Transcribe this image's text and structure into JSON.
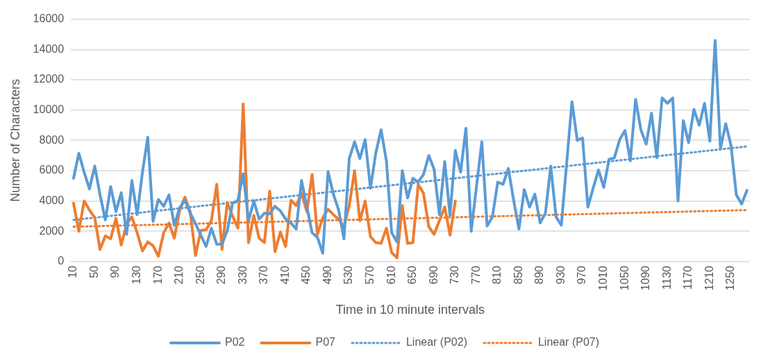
{
  "chart_data": {
    "type": "line",
    "xlabel": "Time in 10 minute intervals",
    "ylabel": "Number of Characters",
    "categories": [
      "10",
      null,
      null,
      null,
      "50",
      null,
      null,
      null,
      "90",
      null,
      null,
      null,
      "130",
      null,
      null,
      null,
      "170",
      null,
      null,
      null,
      "210",
      null,
      null,
      null,
      "250",
      null,
      null,
      null,
      "290",
      null,
      null,
      null,
      "330",
      null,
      null,
      null,
      "370",
      null,
      null,
      null,
      "410",
      null,
      null,
      null,
      "450",
      null,
      null,
      null,
      "490",
      null,
      null,
      null,
      "530",
      null,
      null,
      null,
      "570",
      null,
      null,
      null,
      "610",
      null,
      null,
      null,
      "650",
      null,
      null,
      null,
      "690",
      null,
      null,
      null,
      "730",
      null,
      null,
      null,
      "770",
      null,
      null,
      null,
      "810",
      null,
      null,
      null,
      "850",
      null,
      null,
      null,
      "890",
      null,
      null,
      null,
      "930",
      null,
      null,
      null,
      "970",
      null,
      null,
      null,
      "1010",
      null,
      null,
      null,
      "1050",
      null,
      null,
      null,
      "1090",
      null,
      null,
      null,
      "1130",
      null,
      null,
      null,
      "1170",
      null,
      null,
      null,
      "1210",
      null,
      null,
      null,
      "1250",
      null,
      null,
      null
    ],
    "series": [
      {
        "name": "P02",
        "color": "#5b9bd5",
        "line_style": "solid",
        "values": [
          5500,
          7150,
          5900,
          4800,
          6300,
          4400,
          2750,
          4950,
          3300,
          4550,
          1800,
          5350,
          3100,
          5900,
          8200,
          2650,
          4100,
          3650,
          4400,
          2400,
          3550,
          4050,
          3200,
          2500,
          1750,
          1000,
          2200,
          1150,
          1150,
          2050,
          3850,
          4050,
          5800,
          2700,
          4000,
          2800,
          3200,
          3150,
          3650,
          3350,
          2800,
          2550,
          2150,
          5350,
          3600,
          1900,
          1600,
          550,
          5950,
          4450,
          3400,
          1500,
          6800,
          7900,
          6800,
          8050,
          4850,
          7150,
          8700,
          6650,
          1900,
          1300,
          6000,
          4200,
          5500,
          5250,
          5750,
          7000,
          6100,
          3100,
          6600,
          3050,
          7350,
          5900,
          8800,
          2000,
          5000,
          7900,
          2350,
          2950,
          5250,
          5100,
          6150,
          4050,
          2150,
          4750,
          3600,
          4450,
          2550,
          3200,
          6300,
          2950,
          2400,
          6500,
          10550,
          8000,
          8150,
          3600,
          4850,
          6050,
          4900,
          6750,
          6850,
          8050,
          8650,
          6650,
          10700,
          8700,
          7750,
          9800,
          6850,
          10800,
          10450,
          10800,
          4000,
          9300,
          7850,
          10050,
          9000,
          10450,
          7950,
          14600,
          7450,
          9100,
          7650,
          4400,
          3800,
          4700
        ]
      },
      {
        "name": "P07",
        "color": "#ed7d31",
        "line_style": "solid",
        "values": [
          3850,
          2000,
          4000,
          3400,
          2900,
          800,
          1700,
          1500,
          2850,
          1100,
          2450,
          2950,
          1900,
          700,
          1300,
          1050,
          350,
          1900,
          2550,
          1550,
          3350,
          4250,
          3300,
          400,
          2050,
          2100,
          2700,
          5100,
          800,
          3900,
          3000,
          2200,
          10400,
          1250,
          3050,
          1550,
          1250,
          4650,
          650,
          1950,
          1000,
          4050,
          3700,
          4500,
          3300,
          5750,
          1800,
          2900,
          3450,
          3100,
          2800,
          2300,
          3700,
          6000,
          2700,
          4000,
          1650,
          1250,
          1200,
          2200,
          600,
          250,
          3700,
          1200,
          1250,
          5100,
          4500,
          2300,
          1800,
          2700,
          3600,
          1750,
          4000,
          null,
          null,
          null,
          null,
          null,
          null,
          null,
          null,
          null,
          null,
          null,
          null,
          null,
          null,
          null,
          null,
          null,
          null,
          null,
          null,
          null,
          null,
          null,
          null,
          null,
          null,
          null,
          null,
          null,
          null,
          null,
          null,
          null,
          null,
          null,
          null,
          null,
          null,
          null,
          null,
          null,
          null,
          null,
          null,
          null,
          null,
          null,
          null,
          null,
          null,
          null,
          null,
          null,
          null,
          null
        ]
      },
      {
        "name": "Linear (P02)",
        "color": "#5b9bd5",
        "line_style": "dotted",
        "values": [
          2750,
          null,
          null,
          null,
          null,
          null,
          null,
          null,
          null,
          null,
          null,
          null,
          null,
          null,
          null,
          null,
          null,
          null,
          null,
          null,
          null,
          null,
          null,
          null,
          null,
          null,
          null,
          null,
          null,
          null,
          null,
          null,
          null,
          null,
          null,
          null,
          null,
          null,
          null,
          null,
          null,
          null,
          null,
          null,
          null,
          null,
          null,
          null,
          null,
          null,
          null,
          null,
          null,
          null,
          null,
          null,
          null,
          null,
          null,
          null,
          null,
          null,
          null,
          null,
          null,
          null,
          null,
          null,
          null,
          null,
          null,
          null,
          null,
          null,
          null,
          null,
          null,
          null,
          null,
          null,
          null,
          null,
          null,
          null,
          null,
          null,
          null,
          null,
          null,
          null,
          null,
          null,
          null,
          null,
          null,
          null,
          null,
          null,
          null,
          null,
          null,
          null,
          null,
          null,
          null,
          null,
          null,
          null,
          null,
          null,
          null,
          null,
          null,
          null,
          null,
          null,
          null,
          null,
          null,
          null,
          null,
          null,
          null,
          null,
          null,
          null,
          null,
          7600
        ]
      },
      {
        "name": "Linear (P07)",
        "color": "#ed7d31",
        "line_style": "dotted",
        "values": [
          2300,
          null,
          null,
          null,
          null,
          null,
          null,
          null,
          null,
          null,
          null,
          null,
          null,
          null,
          null,
          null,
          null,
          null,
          null,
          null,
          null,
          null,
          null,
          null,
          null,
          null,
          null,
          null,
          null,
          null,
          null,
          null,
          null,
          null,
          null,
          null,
          null,
          null,
          null,
          null,
          null,
          null,
          null,
          null,
          null,
          null,
          null,
          null,
          null,
          null,
          null,
          null,
          null,
          null,
          null,
          null,
          null,
          null,
          null,
          null,
          null,
          null,
          null,
          null,
          null,
          null,
          null,
          null,
          null,
          null,
          null,
          null,
          null,
          null,
          null,
          null,
          null,
          null,
          null,
          null,
          null,
          null,
          null,
          null,
          null,
          null,
          null,
          null,
          null,
          null,
          null,
          null,
          null,
          null,
          null,
          null,
          null,
          null,
          null,
          null,
          null,
          null,
          null,
          null,
          null,
          null,
          null,
          null,
          null,
          null,
          null,
          null,
          null,
          null,
          null,
          null,
          null,
          null,
          null,
          null,
          null,
          null,
          null,
          null,
          null,
          null,
          null,
          3400
        ]
      }
    ],
    "ylim": [
      0,
      16000
    ],
    "yticks": [
      0,
      2000,
      4000,
      6000,
      8000,
      10000,
      12000,
      14000,
      16000
    ],
    "grid": "y",
    "legend": "bottom",
    "marker": "none"
  }
}
